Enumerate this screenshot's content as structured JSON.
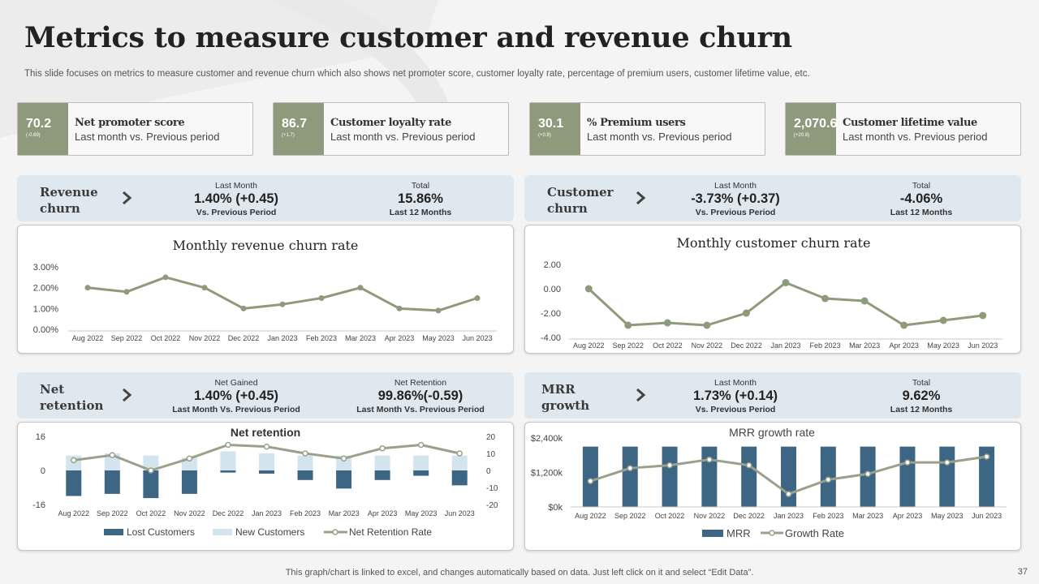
{
  "header": {
    "title": "Metrics to measure customer and revenue churn",
    "subtitle": "This slide focuses on metrics to measure customer and revenue churn which also shows net promoter score, customer loyalty rate, percentage of premium users, customer lifetime value, etc."
  },
  "colors": {
    "olive": "#8f9a7c",
    "navy": "#3d6685",
    "light_blue": "#d3e4ef",
    "band": "#dfe8ef"
  },
  "kpis": [
    {
      "value": "70.2",
      "delta": "(-0.69)",
      "name": "Net promoter score",
      "sub": "Last month vs.  Previous  period"
    },
    {
      "value": "86.7",
      "delta": "(+1.7)",
      "name": "Customer loyalty rate",
      "sub": "Last month vs.  Previous  period"
    },
    {
      "value": "30.1",
      "delta": "(+0.8)",
      "name": "% Premium users",
      "sub": "Last month vs.  Previous  period"
    },
    {
      "value": "2,070.6",
      "delta": "(+20.8)",
      "name": "Customer lifetime value",
      "sub": "Last month vs.  Previous  period"
    }
  ],
  "bands": [
    {
      "label": "Revenue churn",
      "s1": {
        "label": "Last Month",
        "value": "1.40% (+0.45)",
        "note": "Vs. Previous Period"
      },
      "s2": {
        "label": "Total",
        "value": "15.86%",
        "note": "Last 12 Months"
      }
    },
    {
      "label": "Customer churn",
      "s1": {
        "label": "Last Month",
        "value": "-3.73% (+0.37)",
        "note": "Vs. Previous Period"
      },
      "s2": {
        "label": "Total",
        "value": "-4.06%",
        "note": "Last 12 Months"
      }
    },
    {
      "label": "Net retention",
      "s1": {
        "label": "Net Gained",
        "value": "1.40% (+0.45)",
        "note": "Last Month Vs. Previous Period"
      },
      "s2": {
        "label": "Net Retention",
        "value": "99.86%(-0.59)",
        "note": "Last Month Vs. Previous Period"
      }
    },
    {
      "label": "MRR growth",
      "s1": {
        "label": "Last Month",
        "value": "1.73% (+0.14)",
        "note": "Vs. Previous Period"
      },
      "s2": {
        "label": "Total",
        "value": "9.62%",
        "note": "Last 12 Months"
      }
    }
  ],
  "chart_data": [
    {
      "type": "line",
      "title": "Monthly revenue churn rate",
      "categories": [
        "Aug 2022",
        "Sep 2022",
        "Oct 2022",
        "Nov 2022",
        "Dec 2022",
        "Jan 2023",
        "Feb 2023",
        "Mar 2023",
        "Apr 2023",
        "May 2023",
        "Jun 2023"
      ],
      "series": [
        {
          "name": "Revenue churn",
          "values": [
            2.0,
            1.8,
            2.5,
            2.0,
            1.0,
            1.2,
            1.5,
            2.0,
            1.0,
            0.9,
            1.5
          ]
        }
      ],
      "ylim": [
        0,
        3
      ],
      "yticks": [
        "0.00%",
        "1.00%",
        "2.00%",
        "3.00%"
      ]
    },
    {
      "type": "line",
      "title": "Monthly customer churn rate",
      "categories": [
        "Aug 2022",
        "Sep 2022",
        "Oct 2022",
        "Nov 2022",
        "Dec 2022",
        "Jan 2023",
        "Feb 2023",
        "Mar 2023",
        "Apr 2023",
        "May 2023",
        "Jun 2023"
      ],
      "series": [
        {
          "name": "Customer churn",
          "values": [
            0.0,
            -3.0,
            -2.8,
            -3.0,
            -2.0,
            0.5,
            -0.8,
            -1.0,
            -3.0,
            -2.6,
            -2.2
          ]
        }
      ],
      "ylim": [
        -4,
        2
      ],
      "yticks": [
        "-4.00",
        "-2.00",
        "0.00",
        "2.00"
      ]
    },
    {
      "type": "bar",
      "title": "Net retention",
      "categories": [
        "Aug 2022",
        "Sep 2022",
        "Oct 2022",
        "Nov 2022",
        "Dec 2022",
        "Jan 2023",
        "Feb 2023",
        "Mar 2023",
        "Apr 2023",
        "May 2023",
        "Jun 2023"
      ],
      "series": [
        {
          "name": "Lost Customers",
          "values": [
            -12,
            -11,
            -13,
            -11,
            -1,
            -1.5,
            -4.5,
            -8.5,
            -4.5,
            -2.5,
            -7
          ]
        },
        {
          "name": "New Customers",
          "values": [
            7,
            8,
            7,
            6,
            9,
            8,
            7,
            7,
            7,
            7,
            7
          ]
        },
        {
          "name": "Net Retention Rate",
          "values": [
            6,
            9,
            0,
            7,
            15,
            14,
            10,
            7,
            13,
            15,
            10
          ]
        }
      ],
      "ylim": [
        -16,
        16
      ],
      "yticks": [
        "-16",
        "0",
        "16"
      ],
      "y2lim": [
        -20,
        20
      ],
      "y2ticks": [
        "-20",
        "-10",
        "0",
        "10",
        "20"
      ]
    },
    {
      "type": "bar",
      "title": "MRR growth rate",
      "categories": [
        "Aug 2022",
        "Sep 2022",
        "Oct 2022",
        "Nov 2022",
        "Dec 2022",
        "Jan 2023",
        "Feb 2023",
        "Mar 2023",
        "Apr 2023",
        "May 2023",
        "Jun 2023"
      ],
      "series": [
        {
          "name": "MRR",
          "values": [
            2100,
            2100,
            2100,
            2100,
            2100,
            2100,
            2100,
            2100,
            2100,
            2100,
            2100
          ]
        },
        {
          "name": "Growth Rate",
          "values": [
            900,
            1350,
            1450,
            1650,
            1450,
            450,
            950,
            1150,
            1550,
            1550,
            1750
          ]
        }
      ],
      "ylim": [
        0,
        2400
      ],
      "yticks": [
        "$0k",
        "$1,200k",
        "$2,400k"
      ]
    }
  ],
  "footer": {
    "note": "This graph/chart is linked to excel,  and changes automatically based on data. Just left click on it and select “Edit Data”.",
    "page": "37"
  }
}
